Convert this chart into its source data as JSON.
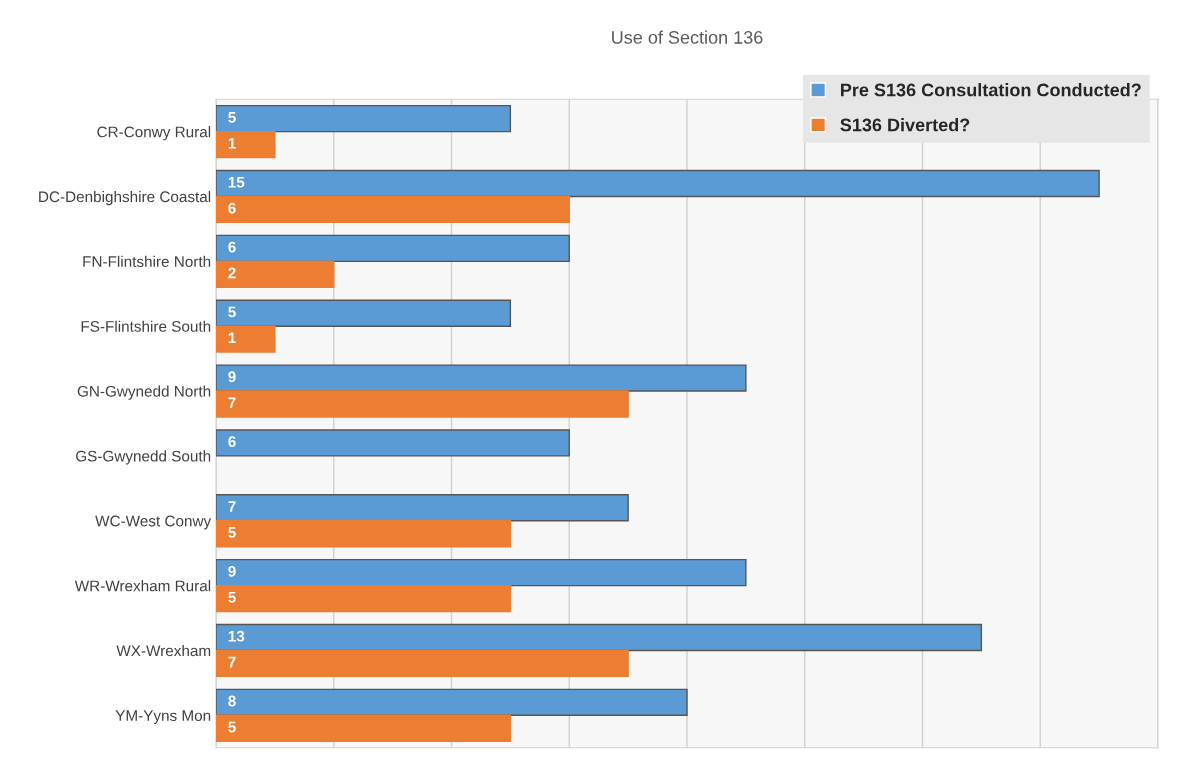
{
  "chart_data": {
    "type": "bar",
    "orientation": "horizontal",
    "title": "Use of Section 136",
    "categories": [
      "CR-Conwy Rural",
      "DC-Denbighshire Coastal",
      "FN-Flintshire North",
      "FS-Flintshire South",
      "GN-Gwynedd North",
      "GS-Gwynedd South",
      "WC-West Conwy",
      "WR-Wrexham Rural",
      "WX-Wrexham",
      "YM-Yyns Mon"
    ],
    "series": [
      {
        "name": "Pre S136 Consultation Conducted?",
        "color": "#5b9bd5",
        "values": [
          5,
          15,
          6,
          5,
          9,
          6,
          7,
          9,
          13,
          8
        ]
      },
      {
        "name": "S136 Diverted?",
        "color": "#ed7d31",
        "values": [
          1,
          6,
          2,
          1,
          7,
          null,
          5,
          5,
          7,
          5
        ]
      }
    ],
    "xlim": [
      0,
      16
    ],
    "xticks": [
      {
        "value": 0,
        "label": null
      },
      {
        "value": 2,
        "label": null
      },
      {
        "value": 4,
        "label": null
      },
      {
        "value": 6,
        "label": null
      },
      {
        "value": 8,
        "label": null
      },
      {
        "value": 10,
        "label": null
      },
      {
        "value": 12,
        "label": null
      },
      {
        "value": 14,
        "label": null
      },
      {
        "value": 16,
        "label": null
      }
    ],
    "tick_labels": "y",
    "grid": "x",
    "legend": "top right",
    "data_labels": true
  }
}
